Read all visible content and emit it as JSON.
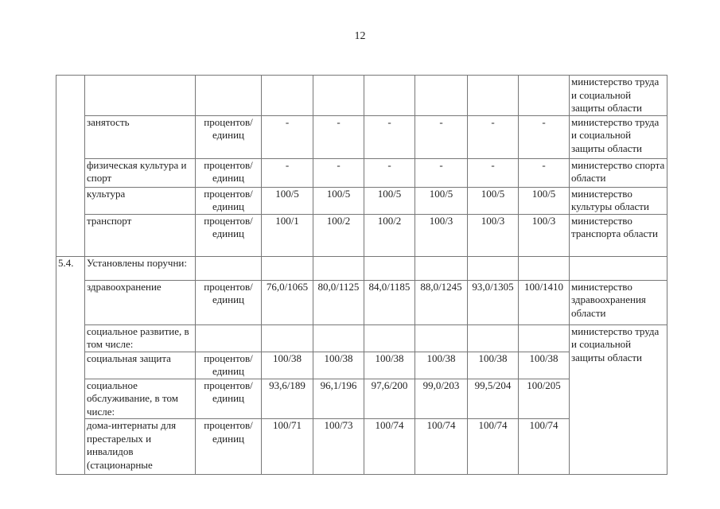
{
  "page_number": "12",
  "rows": [
    {
      "no": "",
      "name": "",
      "unit": "",
      "values": [
        "",
        "",
        "",
        "",
        "",
        ""
      ],
      "responsible": "министерство труда и социальной защиты области"
    },
    {
      "no": "",
      "name": "занятость",
      "unit": "процентов/ единиц",
      "values": [
        "-",
        "-",
        "-",
        "-",
        "-",
        "-"
      ],
      "responsible": "министерство труда и социальной защиты области"
    },
    {
      "no": "",
      "name": "физическая культура и спорт",
      "unit": "процентов/ единиц",
      "values": [
        "-",
        "-",
        "-",
        "-",
        "-",
        "-"
      ],
      "responsible": "министерство спорта области"
    },
    {
      "no": "",
      "name": "культура",
      "unit": "процентов/ единиц",
      "values": [
        "100/5",
        "100/5",
        "100/5",
        "100/5",
        "100/5",
        "100/5"
      ],
      "responsible": "министерство культуры области"
    },
    {
      "no": "",
      "name": "транспорт",
      "unit": "процентов/ единиц",
      "values": [
        "100/1",
        "100/2",
        "100/2",
        "100/3",
        "100/3",
        "100/3"
      ],
      "responsible": "министерство транспорта области"
    },
    {
      "no": "5.4.",
      "name": "Установлены поручни:",
      "unit": "",
      "values": [
        "",
        "",
        "",
        "",
        "",
        ""
      ],
      "responsible": ""
    },
    {
      "no": "",
      "name": "здравоохранение",
      "unit": "процентов/ единиц",
      "values": [
        "76,0/1065",
        "80,0/1125",
        "84,0/1185",
        "88,0/1245",
        "93,0/1305",
        "100/1410"
      ],
      "responsible": "министерство здравоохранения области"
    },
    {
      "no": "",
      "name": "социальное развитие, в том числе:",
      "unit": "",
      "values": [
        "",
        "",
        "",
        "",
        "",
        ""
      ],
      "responsible": "министерство труда и социальной защиты области"
    },
    {
      "no": "",
      "name": "социальная защита",
      "unit": "процентов/ единиц",
      "values": [
        "100/38",
        "100/38",
        "100/38",
        "100/38",
        "100/38",
        "100/38"
      ]
    },
    {
      "no": "",
      "name": "социальное обслуживание, в том числе:",
      "unit": "процентов/ единиц",
      "values": [
        "93,6/189",
        "96,1/196",
        "97,6/200",
        "99,0/203",
        "99,5/204",
        "100/205"
      ]
    },
    {
      "no": "",
      "name": "дома-интернаты для престарелых и инвалидов (стационарные",
      "unit": "процентов/ единиц",
      "values": [
        "100/71",
        "100/73",
        "100/74",
        "100/74",
        "100/74",
        "100/74"
      ]
    }
  ]
}
